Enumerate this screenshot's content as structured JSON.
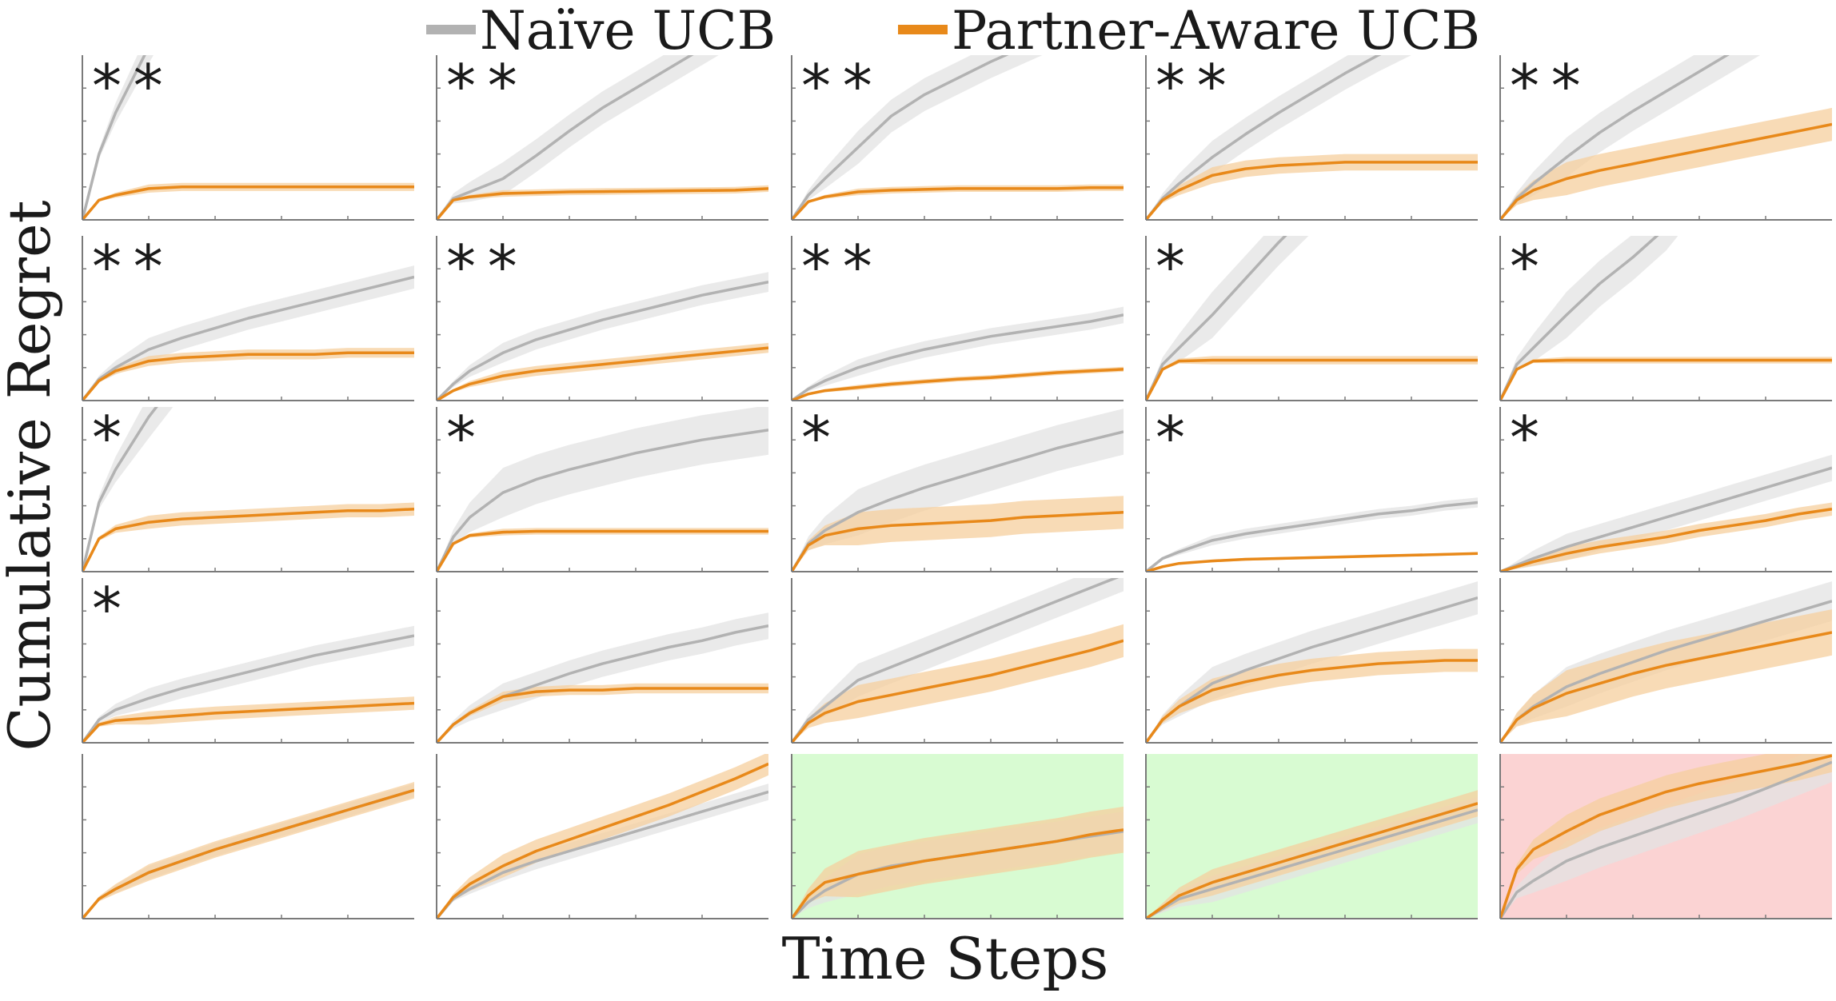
{
  "figure": {
    "ylabel": "Cumulative Regret",
    "xlabel": "Time Steps"
  },
  "legend": [
    {
      "name": "Naïve UCB",
      "color": "#b2b2b2"
    },
    {
      "name": "Partner-Aware UCB",
      "color": "#e8891a"
    }
  ],
  "colors": {
    "naive": "#b2b2b2",
    "naive_band": "#e3e3e3",
    "partner": "#e8891a",
    "partner_band": "#f5cf9e",
    "highlight_green": "#d8fbd2",
    "highlight_red": "#fbd3d3"
  },
  "chart_data": {
    "type": "line",
    "rows": 5,
    "cols": 5,
    "x": [
      0,
      0.05,
      0.1,
      0.2,
      0.3,
      0.4,
      0.5,
      0.6,
      0.7,
      0.8,
      0.9,
      1.0
    ],
    "xlim": [
      0,
      1
    ],
    "ylim": [
      0,
      1
    ],
    "series_names": [
      "Naïve UCB",
      "Partner-Aware UCB"
    ],
    "panels": [
      {
        "stars": "**",
        "bg": "",
        "naive": [
          0,
          0.4,
          0.65,
          1.05,
          1.4,
          1.7,
          2,
          2.3,
          2.6,
          2.9,
          3.2,
          3.5
        ],
        "naive_band": 0.1,
        "partner": [
          0,
          0.12,
          0.15,
          0.19,
          0.2,
          0.2,
          0.2,
          0.2,
          0.2,
          0.2,
          0.2,
          0.2
        ],
        "partner_band": 0.025
      },
      {
        "stars": "**",
        "bg": "",
        "naive": [
          0,
          0.13,
          0.17,
          0.25,
          0.39,
          0.54,
          0.68,
          0.8,
          0.92,
          1.04,
          1.16,
          1.28
        ],
        "naive_band": 0.1,
        "partner": [
          0,
          0.12,
          0.14,
          0.16,
          0.165,
          0.17,
          0.172,
          0.174,
          0.176,
          0.178,
          0.18,
          0.19
        ],
        "partner_band": 0.02
      },
      {
        "stars": "**",
        "bg": "",
        "naive": [
          0,
          0.15,
          0.25,
          0.44,
          0.63,
          0.76,
          0.86,
          0.96,
          1.05,
          1.14,
          1.22,
          1.3
        ],
        "naive_band": 0.1,
        "partner": [
          0,
          0.11,
          0.14,
          0.17,
          0.18,
          0.185,
          0.19,
          0.19,
          0.19,
          0.19,
          0.195,
          0.195
        ],
        "partner_band": 0.02
      },
      {
        "stars": "**",
        "bg": "",
        "naive": [
          0,
          0.13,
          0.22,
          0.38,
          0.52,
          0.65,
          0.77,
          0.89,
          1.0,
          1.1,
          1.2,
          1.3
        ],
        "naive_band": 0.1,
        "partner": [
          0,
          0.12,
          0.18,
          0.27,
          0.31,
          0.33,
          0.34,
          0.35,
          0.35,
          0.35,
          0.35,
          0.35
        ],
        "partner_band": 0.05
      },
      {
        "stars": "**",
        "bg": "",
        "naive": [
          0,
          0.13,
          0.22,
          0.38,
          0.53,
          0.66,
          0.78,
          0.9,
          1.02,
          1.14,
          1.25,
          1.36
        ],
        "naive_band": 0.12,
        "partner": [
          0,
          0.12,
          0.18,
          0.25,
          0.3,
          0.34,
          0.38,
          0.42,
          0.46,
          0.5,
          0.54,
          0.58
        ],
        "partner_band": 0.1
      },
      {
        "stars": "**",
        "bg": "",
        "naive": [
          0,
          0.13,
          0.2,
          0.31,
          0.38,
          0.44,
          0.5,
          0.55,
          0.6,
          0.65,
          0.7,
          0.75
        ],
        "naive_band": 0.07,
        "partner": [
          0,
          0.12,
          0.18,
          0.24,
          0.26,
          0.27,
          0.28,
          0.28,
          0.28,
          0.29,
          0.29,
          0.29
        ],
        "partner_band": 0.03
      },
      {
        "stars": "**",
        "bg": "",
        "naive": [
          0,
          0.1,
          0.18,
          0.29,
          0.37,
          0.43,
          0.49,
          0.54,
          0.59,
          0.64,
          0.68,
          0.72
        ],
        "naive_band": 0.06,
        "partner": [
          0,
          0.06,
          0.1,
          0.15,
          0.18,
          0.2,
          0.22,
          0.24,
          0.26,
          0.28,
          0.3,
          0.32
        ],
        "partner_band": 0.03
      },
      {
        "stars": "**",
        "bg": "",
        "naive": [
          0,
          0.07,
          0.12,
          0.2,
          0.26,
          0.31,
          0.35,
          0.39,
          0.42,
          0.45,
          0.48,
          0.52
        ],
        "naive_band": 0.05,
        "partner": [
          0,
          0.04,
          0.06,
          0.08,
          0.1,
          0.115,
          0.13,
          0.14,
          0.155,
          0.17,
          0.18,
          0.19
        ],
        "partner_band": 0.015
      },
      {
        "stars": "*",
        "bg": "",
        "naive": [
          0,
          0.22,
          0.32,
          0.52,
          0.74,
          0.96,
          1.16,
          1.36,
          1.56,
          1.76,
          1.96,
          2.16
        ],
        "naive_band": 0.14,
        "partner": [
          0,
          0.19,
          0.24,
          0.245,
          0.245,
          0.245,
          0.245,
          0.245,
          0.245,
          0.245,
          0.245,
          0.245
        ],
        "partner_band": 0.025
      },
      {
        "stars": "*",
        "bg": "",
        "naive": [
          0,
          0.22,
          0.32,
          0.52,
          0.71,
          0.87,
          1.05,
          1.3,
          1.56,
          1.82,
          2.08,
          2.34
        ],
        "naive_band": 0.14,
        "partner": [
          0,
          0.19,
          0.24,
          0.245,
          0.245,
          0.245,
          0.245,
          0.245,
          0.245,
          0.245,
          0.245,
          0.245
        ],
        "partner_band": 0.02
      },
      {
        "stars": "*",
        "bg": "",
        "naive": [
          0,
          0.42,
          0.62,
          0.94,
          1.2,
          1.46,
          1.7,
          1.94,
          2.18,
          2.4,
          2.62,
          2.84
        ],
        "naive_band": 0.13,
        "partner": [
          0,
          0.2,
          0.26,
          0.3,
          0.32,
          0.33,
          0.34,
          0.35,
          0.36,
          0.37,
          0.37,
          0.38
        ],
        "partner_band": 0.04
      },
      {
        "stars": "*",
        "bg": "",
        "naive": [
          0,
          0.21,
          0.33,
          0.48,
          0.56,
          0.62,
          0.67,
          0.72,
          0.76,
          0.8,
          0.83,
          0.86
        ],
        "naive_band": 0.15,
        "partner": [
          0,
          0.17,
          0.22,
          0.24,
          0.245,
          0.245,
          0.245,
          0.245,
          0.245,
          0.245,
          0.245,
          0.245
        ],
        "partner_band": 0.02
      },
      {
        "stars": "*",
        "bg": "",
        "naive": [
          0,
          0.17,
          0.25,
          0.36,
          0.44,
          0.51,
          0.57,
          0.63,
          0.69,
          0.75,
          0.8,
          0.85
        ],
        "naive_band": 0.14,
        "partner": [
          0,
          0.16,
          0.22,
          0.26,
          0.28,
          0.29,
          0.3,
          0.31,
          0.33,
          0.34,
          0.35,
          0.36
        ],
        "partner_band": 0.1
      },
      {
        "stars": "*",
        "bg": "",
        "naive": [
          0,
          0.08,
          0.12,
          0.19,
          0.23,
          0.26,
          0.29,
          0.32,
          0.35,
          0.37,
          0.4,
          0.42
        ],
        "naive_band": 0.03,
        "partner": [
          0,
          0.03,
          0.05,
          0.065,
          0.075,
          0.08,
          0.085,
          0.09,
          0.095,
          0.1,
          0.105,
          0.11
        ],
        "partner_band": 0.008
      },
      {
        "stars": "*",
        "bg": "",
        "naive": [
          0,
          0.04,
          0.08,
          0.15,
          0.21,
          0.27,
          0.33,
          0.39,
          0.45,
          0.51,
          0.57,
          0.63
        ],
        "naive_band": 0.08,
        "partner": [
          0,
          0.03,
          0.06,
          0.11,
          0.15,
          0.18,
          0.21,
          0.25,
          0.28,
          0.31,
          0.35,
          0.38
        ],
        "partner_band": 0.04
      },
      {
        "stars": "*",
        "bg": "",
        "naive": [
          0,
          0.14,
          0.2,
          0.27,
          0.33,
          0.38,
          0.43,
          0.48,
          0.53,
          0.57,
          0.61,
          0.65
        ],
        "naive_band": 0.06,
        "partner": [
          0,
          0.11,
          0.135,
          0.15,
          0.165,
          0.18,
          0.19,
          0.2,
          0.21,
          0.22,
          0.23,
          0.24
        ],
        "partner_band": 0.04
      },
      {
        "stars": "",
        "bg": "",
        "naive": [
          0,
          0.11,
          0.18,
          0.28,
          0.35,
          0.42,
          0.48,
          0.53,
          0.58,
          0.62,
          0.67,
          0.71
        ],
        "naive_band": 0.08,
        "partner": [
          0,
          0.11,
          0.18,
          0.28,
          0.31,
          0.32,
          0.32,
          0.33,
          0.33,
          0.33,
          0.33,
          0.33
        ],
        "partner_band": 0.03
      },
      {
        "stars": "",
        "bg": "",
        "naive": [
          0,
          0.14,
          0.22,
          0.38,
          0.46,
          0.54,
          0.62,
          0.7,
          0.78,
          0.86,
          0.94,
          1.02
        ],
        "naive_band": 0.1,
        "partner": [
          0,
          0.12,
          0.18,
          0.25,
          0.29,
          0.33,
          0.37,
          0.41,
          0.46,
          0.51,
          0.56,
          0.62
        ],
        "partner_band": 0.1
      },
      {
        "stars": "",
        "bg": "",
        "naive": [
          0,
          0.14,
          0.22,
          0.36,
          0.44,
          0.51,
          0.58,
          0.64,
          0.7,
          0.76,
          0.82,
          0.88
        ],
        "naive_band": 0.1,
        "partner": [
          0,
          0.14,
          0.22,
          0.32,
          0.37,
          0.41,
          0.44,
          0.46,
          0.48,
          0.49,
          0.5,
          0.5
        ],
        "partner_band": 0.07
      },
      {
        "stars": "",
        "bg": "",
        "naive": [
          0,
          0.14,
          0.22,
          0.34,
          0.42,
          0.49,
          0.56,
          0.62,
          0.68,
          0.74,
          0.8,
          0.86
        ],
        "naive_band": 0.12,
        "partner": [
          0,
          0.14,
          0.21,
          0.3,
          0.36,
          0.42,
          0.47,
          0.51,
          0.55,
          0.59,
          0.63,
          0.67
        ],
        "partner_band": 0.14
      },
      {
        "stars": "",
        "bg": "",
        "naive": [
          0,
          0.12,
          0.18,
          0.28,
          0.35,
          0.42,
          0.48,
          0.54,
          0.6,
          0.66,
          0.72,
          0.78
        ],
        "naive_band": 0.04,
        "partner": [
          0,
          0.12,
          0.18,
          0.28,
          0.35,
          0.42,
          0.48,
          0.54,
          0.6,
          0.66,
          0.72,
          0.78
        ],
        "partner_band": 0.05
      },
      {
        "stars": "",
        "bg": "",
        "naive": [
          0,
          0.12,
          0.18,
          0.28,
          0.35,
          0.41,
          0.47,
          0.53,
          0.59,
          0.65,
          0.71,
          0.77
        ],
        "naive_band": 0.05,
        "partner": [
          0,
          0.13,
          0.21,
          0.32,
          0.41,
          0.48,
          0.55,
          0.62,
          0.69,
          0.77,
          0.85,
          0.94
        ],
        "partner_band": 0.07
      },
      {
        "stars": "",
        "bg": "green",
        "naive": [
          0,
          0.1,
          0.17,
          0.27,
          0.32,
          0.35,
          0.38,
          0.41,
          0.44,
          0.47,
          0.5,
          0.53
        ],
        "naive_band": 0.12,
        "partner": [
          0,
          0.14,
          0.22,
          0.27,
          0.31,
          0.35,
          0.38,
          0.41,
          0.44,
          0.47,
          0.51,
          0.54
        ],
        "partner_band": 0.14
      },
      {
        "stars": "",
        "bg": "green",
        "naive": [
          0,
          0.06,
          0.12,
          0.18,
          0.24,
          0.3,
          0.36,
          0.42,
          0.48,
          0.54,
          0.6,
          0.66
        ],
        "naive_band": 0.08,
        "partner": [
          0,
          0.07,
          0.14,
          0.22,
          0.28,
          0.34,
          0.4,
          0.46,
          0.52,
          0.58,
          0.64,
          0.7
        ],
        "partner_band": 0.08
      },
      {
        "stars": "",
        "bg": "red",
        "naive": [
          0,
          0.16,
          0.23,
          0.35,
          0.43,
          0.5,
          0.57,
          0.64,
          0.71,
          0.79,
          0.87,
          0.95
        ],
        "naive_band": 0.12,
        "partner": [
          0,
          0.3,
          0.42,
          0.53,
          0.63,
          0.7,
          0.77,
          0.82,
          0.86,
          0.9,
          0.94,
          0.99
        ],
        "partner_band": 0.1
      }
    ]
  }
}
